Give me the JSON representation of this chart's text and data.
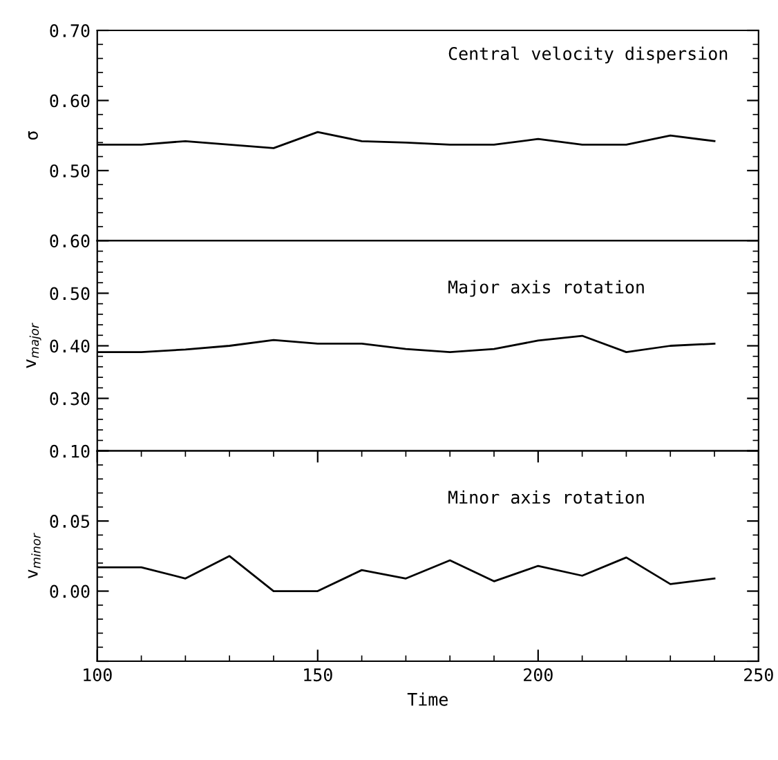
{
  "chart_data": [
    {
      "type": "line",
      "ylabel": "σ",
      "x": [
        100,
        110,
        120,
        130,
        140,
        150,
        160,
        170,
        180,
        190,
        200,
        210,
        220,
        230,
        240
      ],
      "series": [
        {
          "color": "#000000",
          "values": [
            0.537,
            0.537,
            0.542,
            0.537,
            0.532,
            0.555,
            0.542,
            0.54,
            0.537,
            0.537,
            0.545,
            0.537,
            0.537,
            0.55,
            0.542
          ]
        }
      ],
      "xlim": [
        100,
        250
      ],
      "ylim": [
        0.4,
        0.7
      ],
      "yticks": [
        {
          "value": 0.4,
          "label": null
        },
        {
          "value": 0.5,
          "label": "0.50"
        },
        {
          "value": 0.6,
          "label": "0.60"
        },
        {
          "value": 0.7,
          "label": "0.70"
        }
      ],
      "tick_labels": "y",
      "annotations": [
        "Central velocity dispersion"
      ],
      "grid": false,
      "legend": false
    },
    {
      "type": "line",
      "ylabel": "v$_{major}$",
      "x": [
        100,
        110,
        120,
        130,
        140,
        150,
        160,
        170,
        180,
        190,
        200,
        210,
        220,
        230,
        240
      ],
      "series": [
        {
          "color": "#000000",
          "values": [
            0.388,
            0.388,
            0.393,
            0.4,
            0.411,
            0.404,
            0.404,
            0.394,
            0.388,
            0.394,
            0.41,
            0.419,
            0.388,
            0.4,
            0.404
          ]
        }
      ],
      "xlim": [
        100,
        250
      ],
      "ylim": [
        0.2,
        0.6
      ],
      "yticks": [
        {
          "value": 0.2,
          "label": null
        },
        {
          "value": 0.3,
          "label": "0.30"
        },
        {
          "value": 0.4,
          "label": "0.40"
        },
        {
          "value": 0.5,
          "label": "0.50"
        },
        {
          "value": 0.6,
          "label": "0.60"
        }
      ],
      "tick_labels": "y",
      "annotations": [
        "Major axis rotation"
      ],
      "grid": false,
      "legend": false
    },
    {
      "type": "line",
      "xlabel": "Time",
      "ylabel": "v$_{minor}$",
      "x": [
        100,
        110,
        120,
        130,
        140,
        150,
        160,
        170,
        180,
        190,
        200,
        210,
        220,
        230,
        240
      ],
      "series": [
        {
          "color": "#000000",
          "values": [
            0.017,
            0.017,
            0.009,
            0.025,
            0.0,
            0.0,
            0.015,
            0.009,
            0.022,
            0.007,
            0.018,
            0.011,
            0.024,
            0.005,
            0.009
          ]
        }
      ],
      "xlim": [
        100,
        250
      ],
      "xticks": [
        100,
        150,
        200,
        250
      ],
      "ylim": [
        -0.05,
        0.1
      ],
      "yticks": [
        {
          "value": -0.05,
          "label": null
        },
        {
          "value": 0.0,
          "label": "0.00"
        },
        {
          "value": 0.05,
          "label": "0.05"
        },
        {
          "value": 0.1,
          "label": "0.10"
        }
      ],
      "annotations": [
        "Minor axis rotation"
      ],
      "grid": false,
      "legend": false
    }
  ]
}
